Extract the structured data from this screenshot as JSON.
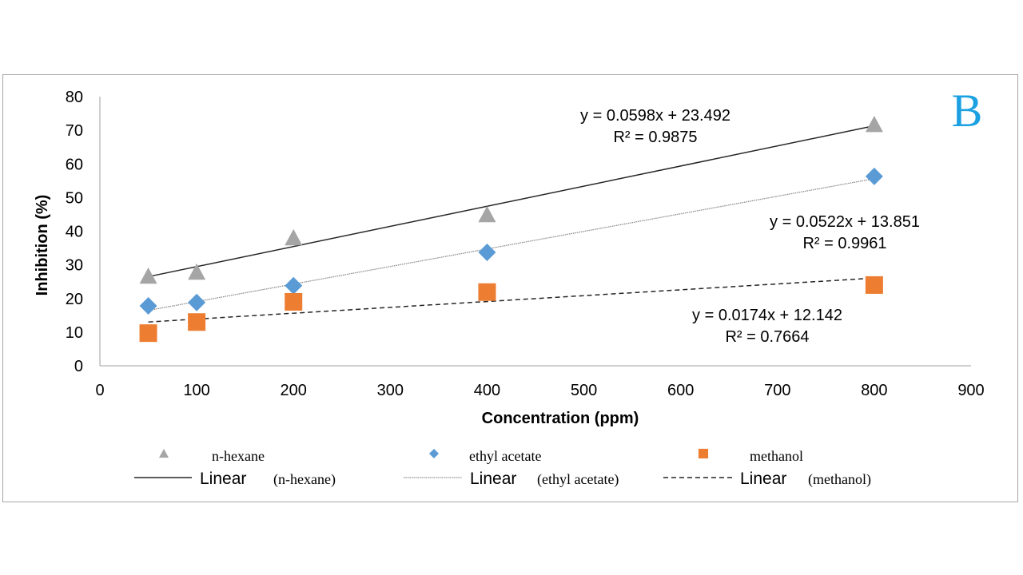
{
  "chart_data": {
    "type": "scatter",
    "panel_label": "B",
    "title": "",
    "xlabel": "Concentration (ppm)",
    "ylabel": "Inhibition (%)",
    "xlim": [
      0,
      900
    ],
    "ylim": [
      0,
      80
    ],
    "xticks": [
      0,
      100,
      200,
      300,
      400,
      500,
      600,
      700,
      800,
      900
    ],
    "yticks": [
      0,
      10,
      20,
      30,
      40,
      50,
      60,
      70,
      80
    ],
    "grid": false,
    "legend_position": "bottom",
    "x": [
      50,
      100,
      200,
      400,
      800
    ],
    "series": [
      {
        "name": "n-hexane",
        "marker": "triangle",
        "color": "#a5a5a5",
        "values": [
          26.6,
          27.8,
          38.0,
          44.9,
          71.7
        ],
        "trendline": {
          "label": "Linear",
          "label_suffix": "(n-hexane)",
          "style": "solid",
          "slope": 0.0598,
          "intercept": 23.492,
          "equation": "y = 0.0598x + 23.492",
          "r2": "R² = 0.9875"
        }
      },
      {
        "name": "ethyl acetate",
        "marker": "diamond",
        "color": "#5b9bd5",
        "values": [
          17.8,
          18.8,
          23.8,
          33.7,
          56.3
        ],
        "trendline": {
          "label": "Linear",
          "label_suffix": "(ethyl acetate)",
          "style": "dotted",
          "slope": 0.0522,
          "intercept": 13.851,
          "equation": "y = 0.0522x + 13.851",
          "r2": "R² = 0.9961"
        }
      },
      {
        "name": "methanol",
        "marker": "square",
        "color": "#ed7d31",
        "values": [
          9.7,
          13.0,
          19.0,
          21.9,
          24.0
        ],
        "trendline": {
          "label": "Linear",
          "label_suffix": "(methanol)",
          "style": "dashed",
          "slope": 0.0174,
          "intercept": 12.142,
          "equation": "y = 0.0174x + 12.142",
          "r2": "R² = 0.7664"
        }
      }
    ]
  },
  "colors": {
    "panel_label": "#1ba1e2",
    "axis": "#bfbfbf",
    "text": "#000000"
  }
}
